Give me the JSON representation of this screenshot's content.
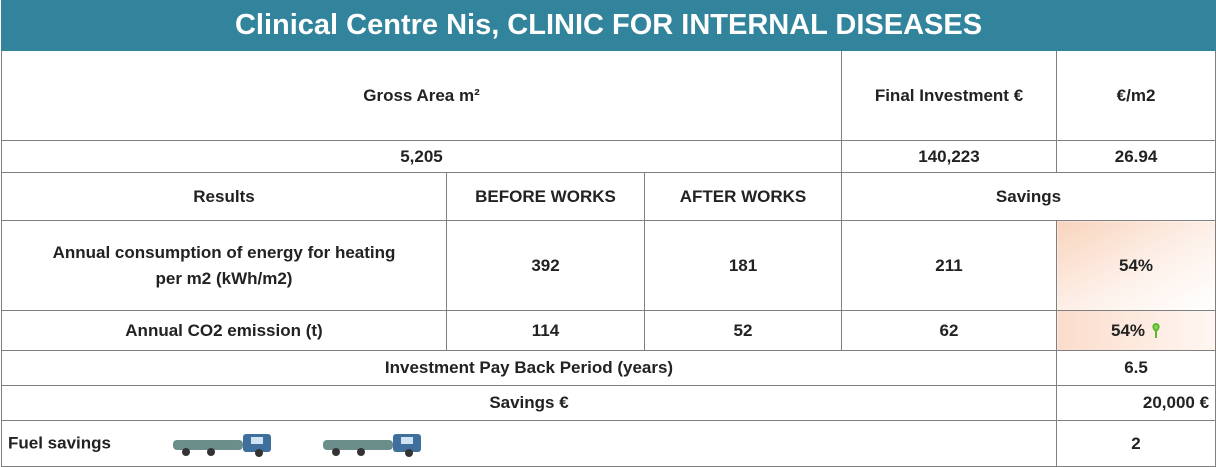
{
  "header": {
    "title": "Clinical Centre Nis, CLINIC FOR INTERNAL DISEASES"
  },
  "summary": {
    "labels": [
      "Gross Area m²",
      "Final Investment €",
      "€/m2"
    ],
    "values": [
      "5,205",
      "140,223",
      "26.94"
    ]
  },
  "results": {
    "columns": [
      "Results",
      "BEFORE WORKS",
      "AFTER WORKS",
      "Savings"
    ],
    "rows": [
      [
        "Annual consumption of energy for heating per m2 (kWh/m2)",
        "392",
        "181",
        "211",
        "54%"
      ],
      [
        "Annual CO2 emission (t)",
        "114",
        "52",
        "62",
        "54%"
      ]
    ]
  },
  "payback": {
    "label": "Investment Pay Back Period (years)",
    "value": "6.5"
  },
  "savings": {
    "label": "Savings €",
    "value": "20,000 €"
  },
  "fuel": {
    "label": "Fuel savings",
    "value": "2"
  }
}
